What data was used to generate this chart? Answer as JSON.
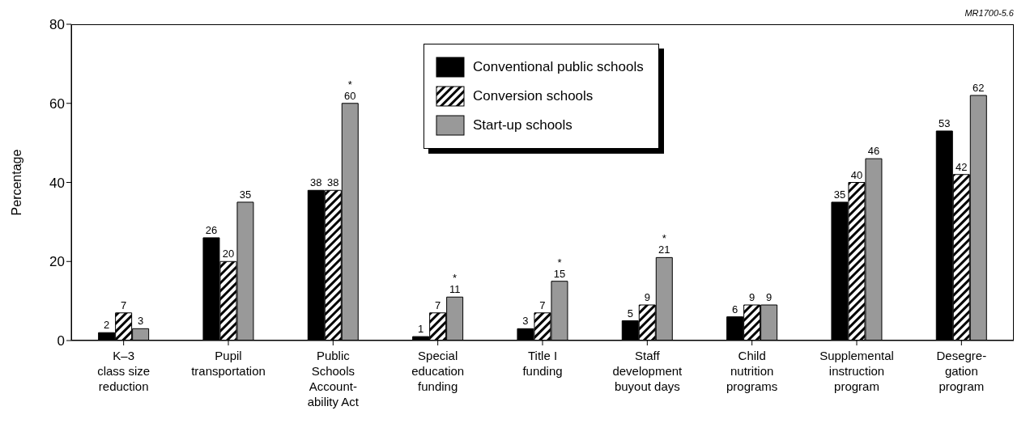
{
  "chart_data": {
    "type": "bar",
    "ylabel": "Percentage",
    "categories": [
      "K–3\nclass size\nreduction",
      "Pupil\ntransportation",
      "Public\nSchools\nAccount-\nability Act",
      "Special\neducation\nfunding",
      "Title I\nfunding",
      "Staff\ndevelopment\nbuyout days",
      "Child\nnutrition\nprograms",
      "Supplemental\ninstruction\nprogram",
      "Desegre-\ngation\nprogram"
    ],
    "series": [
      {
        "name": "Conventional public schools",
        "color": "#000000",
        "values": [
          2,
          26,
          38,
          1,
          3,
          5,
          6,
          35,
          53
        ],
        "value_labels": [
          "2",
          "26",
          "38",
          "1",
          "3",
          "5",
          "6",
          "35",
          "53"
        ]
      },
      {
        "name": "Conversion schools",
        "color": "#000000",
        "values": [
          7,
          20,
          38,
          7,
          7,
          9,
          9,
          40,
          42
        ],
        "value_labels": [
          "7",
          "20",
          "38",
          "7",
          "7",
          "9",
          "9",
          "40",
          "42"
        ]
      },
      {
        "name": "Start-up schools",
        "color": "#999999",
        "values": [
          3,
          35,
          60,
          11,
          15,
          21,
          9,
          46,
          62
        ],
        "value_labels": [
          "3",
          "35",
          "*\n60",
          "*\n11",
          "*\n15",
          "*\n21",
          "9",
          "46",
          "62"
        ]
      }
    ],
    "ylim": [
      0,
      80
    ],
    "yticks": [
      0,
      20,
      40,
      60,
      80
    ],
    "legend": "top",
    "annotations": [
      "MR1700-5.6"
    ]
  }
}
